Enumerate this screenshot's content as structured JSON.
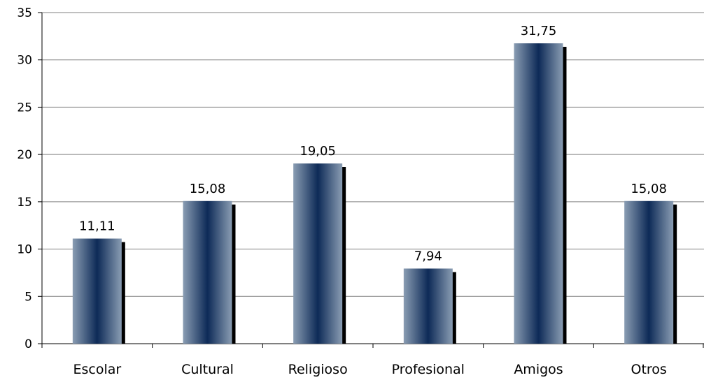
{
  "chart_data": {
    "type": "bar",
    "categories": [
      "Escolar",
      "Cultural",
      "Religioso",
      "Profesional",
      "Amigos",
      "Otros"
    ],
    "values": [
      11.11,
      15.08,
      19.05,
      7.94,
      31.75,
      15.08
    ],
    "value_labels": [
      "11,11",
      "15,08",
      "19,05",
      "7,94",
      "31,75",
      "15,08"
    ],
    "title": "",
    "xlabel": "",
    "ylabel": "",
    "ylim": [
      0,
      35
    ],
    "yticks": [
      0,
      5,
      10,
      15,
      20,
      25,
      30,
      35
    ],
    "grid": true,
    "legend": "none",
    "colors": {
      "bar_edge": "#8a9db3",
      "bar_center": "#0d2a57",
      "bar_shadow": "#000000",
      "grid": "#808080",
      "axis": "#000000"
    }
  }
}
